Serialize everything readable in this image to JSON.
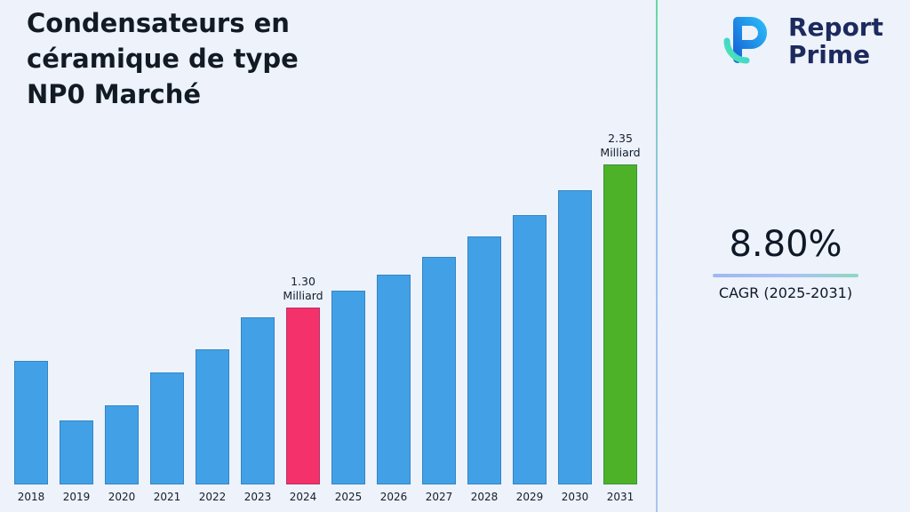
{
  "header": {
    "title_lines": [
      "Condensateurs en",
      "céramique de type",
      "NP0 Marché"
    ]
  },
  "brand": {
    "name_line1": "Report",
    "name_line2": "Prime"
  },
  "stats": {
    "cagr_value": "8.80%",
    "cagr_label": "CAGR (2025-2031)"
  },
  "chart_data": {
    "type": "bar",
    "title": "Condensateurs en céramique de type NP0 Marché",
    "unit": "Milliard",
    "categories": [
      "2018",
      "2019",
      "2020",
      "2021",
      "2022",
      "2023",
      "2024",
      "2025",
      "2026",
      "2027",
      "2028",
      "2029",
      "2030",
      "2031"
    ],
    "values": [
      0.91,
      0.47,
      0.58,
      0.82,
      0.99,
      1.23,
      1.3,
      1.42,
      1.54,
      1.67,
      1.82,
      1.98,
      2.16,
      2.35
    ],
    "ylim": [
      0,
      2.35
    ],
    "grid": false,
    "legend": false,
    "bar_colors": {
      "default": "#42a1e6",
      "2024": "#f5316b",
      "2031": "#4eb229"
    },
    "annotations": [
      {
        "category": "2024",
        "lines": [
          "1.30",
          "Milliard"
        ]
      },
      {
        "category": "2031",
        "lines": [
          "2.35",
          "Milliard"
        ]
      }
    ]
  }
}
